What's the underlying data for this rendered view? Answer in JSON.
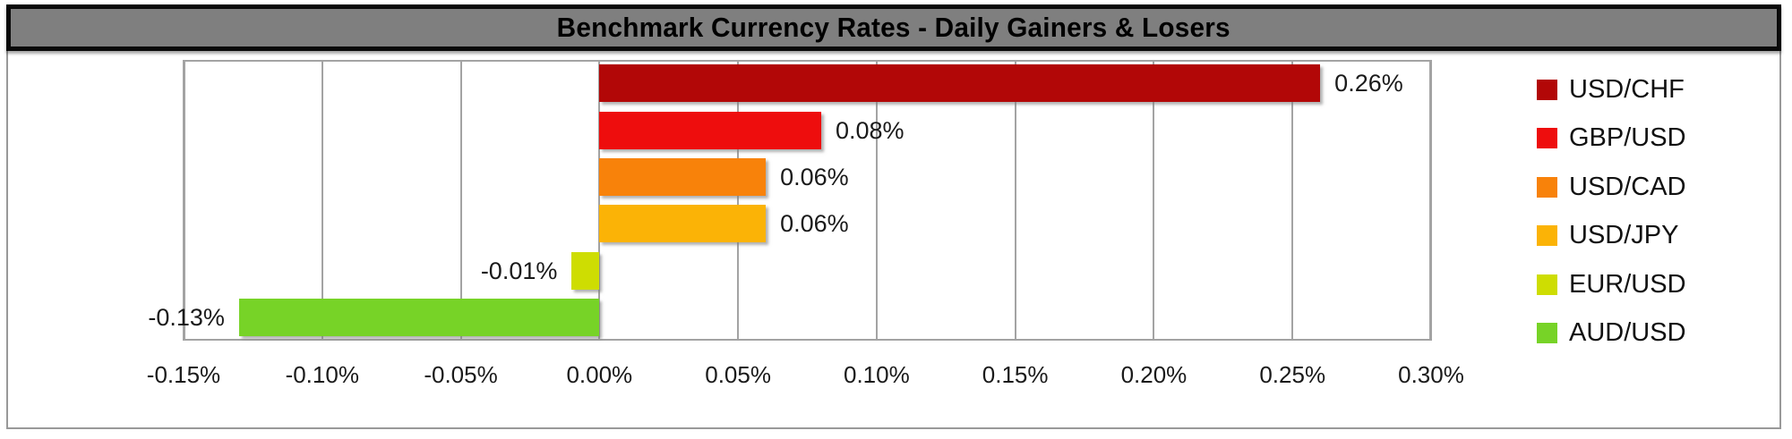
{
  "header": {
    "title": "Benchmark Currency Rates - Daily Gainers & Losers"
  },
  "chart_data": {
    "type": "bar",
    "orientation": "horizontal",
    "title": "Benchmark Currency Rates - Daily Gainers & Losers",
    "categories": [
      "USD/CHF",
      "GBP/USD",
      "USD/CAD",
      "USD/JPY",
      "EUR/USD",
      "AUD/USD"
    ],
    "values": [
      0.26,
      0.08,
      0.06,
      0.06,
      -0.01,
      -0.13
    ],
    "data_labels": [
      "0.26%",
      "0.08%",
      "0.06%",
      "0.06%",
      "-0.01%",
      "-0.13%"
    ],
    "series_colors": [
      "#b20707",
      "#ee0d0d",
      "#f8820a",
      "#fbb306",
      "#cedd02",
      "#77d327"
    ],
    "xlim": [
      -0.15,
      0.3
    ],
    "x_tick_values": [
      -0.15,
      -0.1,
      -0.05,
      0,
      0.05,
      0.1,
      0.15,
      0.2,
      0.25,
      0.3
    ],
    "x_tick_labels": [
      "-0.15%",
      "-0.10%",
      "-0.05%",
      "0.00%",
      "0.05%",
      "0.10%",
      "0.15%",
      "0.20%",
      "0.25%",
      "0.30%"
    ],
    "grid": true,
    "legend_position": "right",
    "legend_entries": [
      "USD/CHF",
      "GBP/USD",
      "USD/CAD",
      "USD/JPY",
      "EUR/USD",
      "AUD/USD"
    ]
  },
  "theme": {
    "background": "#ffffff",
    "title_bar_bg": "#7f7f7f",
    "title_bar_border": "#0a0a0a",
    "title_text_color": "#000000",
    "frame_border": "#999999",
    "plot_border": "#a3a3a3",
    "gridline_color": "#a3a3a3",
    "label_text_color": "#1a1a1a"
  }
}
